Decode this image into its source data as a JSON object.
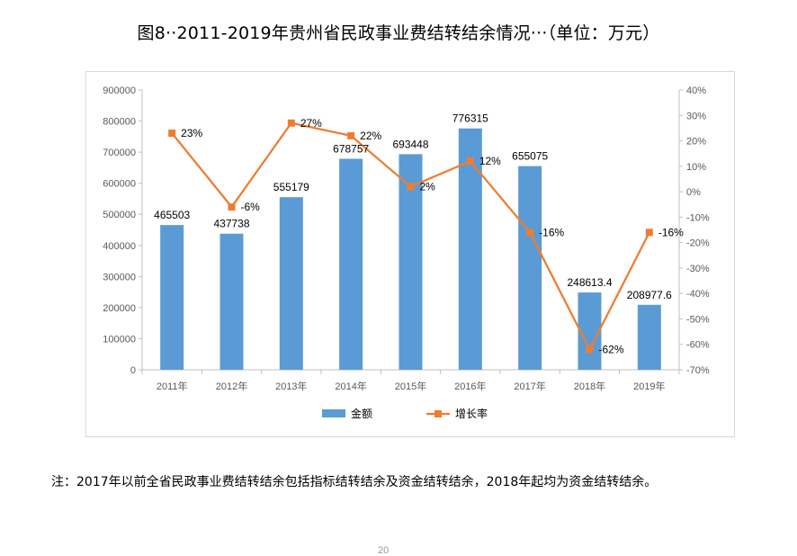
{
  "title": "图8··2011-2019年贵州省民政事业费结转结余情况···（单位：万元）",
  "note": "注：2017年以前全省民政事业费结转结余包括指标结转结余及资金结转结余，2018年起均为资金结转结余。",
  "page_number": "20",
  "chart_data": {
    "type": "bar",
    "categories": [
      "2011年",
      "2012年",
      "2013年",
      "2014年",
      "2015年",
      "2016年",
      "2017年",
      "2018年",
      "2019年"
    ],
    "series": [
      {
        "name": "金额",
        "type": "bar",
        "axis": "left",
        "color": "#5b9bd5",
        "values": [
          465503,
          437738,
          555179,
          678757,
          693448,
          776315,
          655075,
          248613.4,
          208977.6
        ],
        "labels": [
          "465503",
          "437738",
          "555179",
          "678757",
          "693448",
          "776315",
          "655075",
          "248613.4",
          "208977.6"
        ]
      },
      {
        "name": "增长率",
        "type": "line",
        "axis": "right",
        "color": "#ed7d31",
        "values": [
          23,
          -6,
          27,
          22,
          2,
          12,
          -16,
          -62,
          -16
        ],
        "labels": [
          "23%",
          "-6%",
          "27%",
          "22%",
          "2%",
          "12%",
          "-16%",
          "-62%",
          "-16%"
        ]
      }
    ],
    "ylim_left": [
      0,
      900000
    ],
    "yticks_left": [
      "0",
      "100000",
      "200000",
      "300000",
      "400000",
      "500000",
      "600000",
      "700000",
      "800000",
      "900000"
    ],
    "ylim_right": [
      -70,
      40
    ],
    "yticks_right": [
      "-70%",
      "-60%",
      "-50%",
      "-40%",
      "-30%",
      "-20%",
      "-10%",
      "0%",
      "10%",
      "20%",
      "30%",
      "40%"
    ],
    "grid": false,
    "legend_position": "bottom"
  }
}
